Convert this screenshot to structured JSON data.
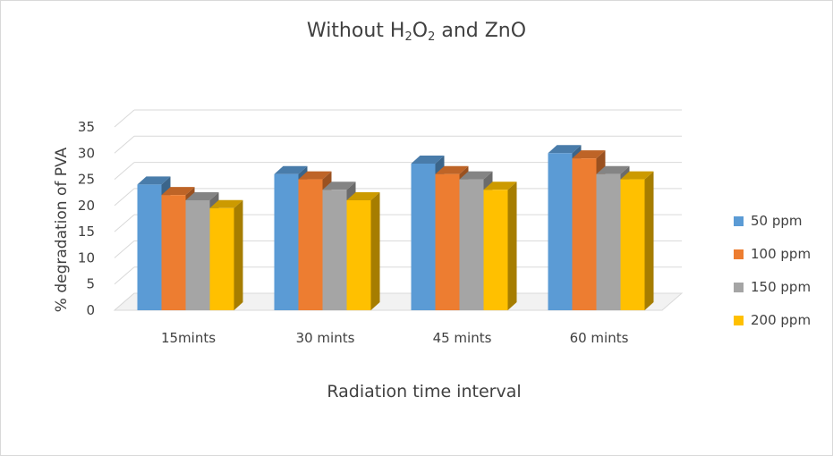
{
  "chart_data": {
    "type": "bar",
    "title": {
      "prefix": "Without H",
      "sub1": "2",
      "mid": "O",
      "sub2": "2",
      "suffix": " and ZnO"
    },
    "xlabel": "Radiation time interval",
    "ylabel": "% degradation of PVA",
    "categories": [
      "15mints",
      "30 mints",
      "45 mints",
      "60 mints"
    ],
    "ylim": [
      0,
      35
    ],
    "yticks": [
      0,
      5,
      10,
      15,
      20,
      25,
      30,
      35
    ],
    "grid": true,
    "legend_position": "right",
    "three_d": true,
    "series": [
      {
        "name": "50 ppm",
        "color": "#5b9bd5",
        "values": [
          24,
          26,
          28,
          30
        ]
      },
      {
        "name": "100 ppm",
        "color": "#ed7d31",
        "values": [
          22,
          25,
          26,
          29
        ]
      },
      {
        "name": "150 ppm",
        "color": "#a5a5a5",
        "values": [
          21,
          23,
          25,
          26
        ]
      },
      {
        "name": "200 ppm",
        "color": "#ffc000",
        "values": [
          19.5,
          21,
          23,
          25
        ]
      }
    ]
  }
}
